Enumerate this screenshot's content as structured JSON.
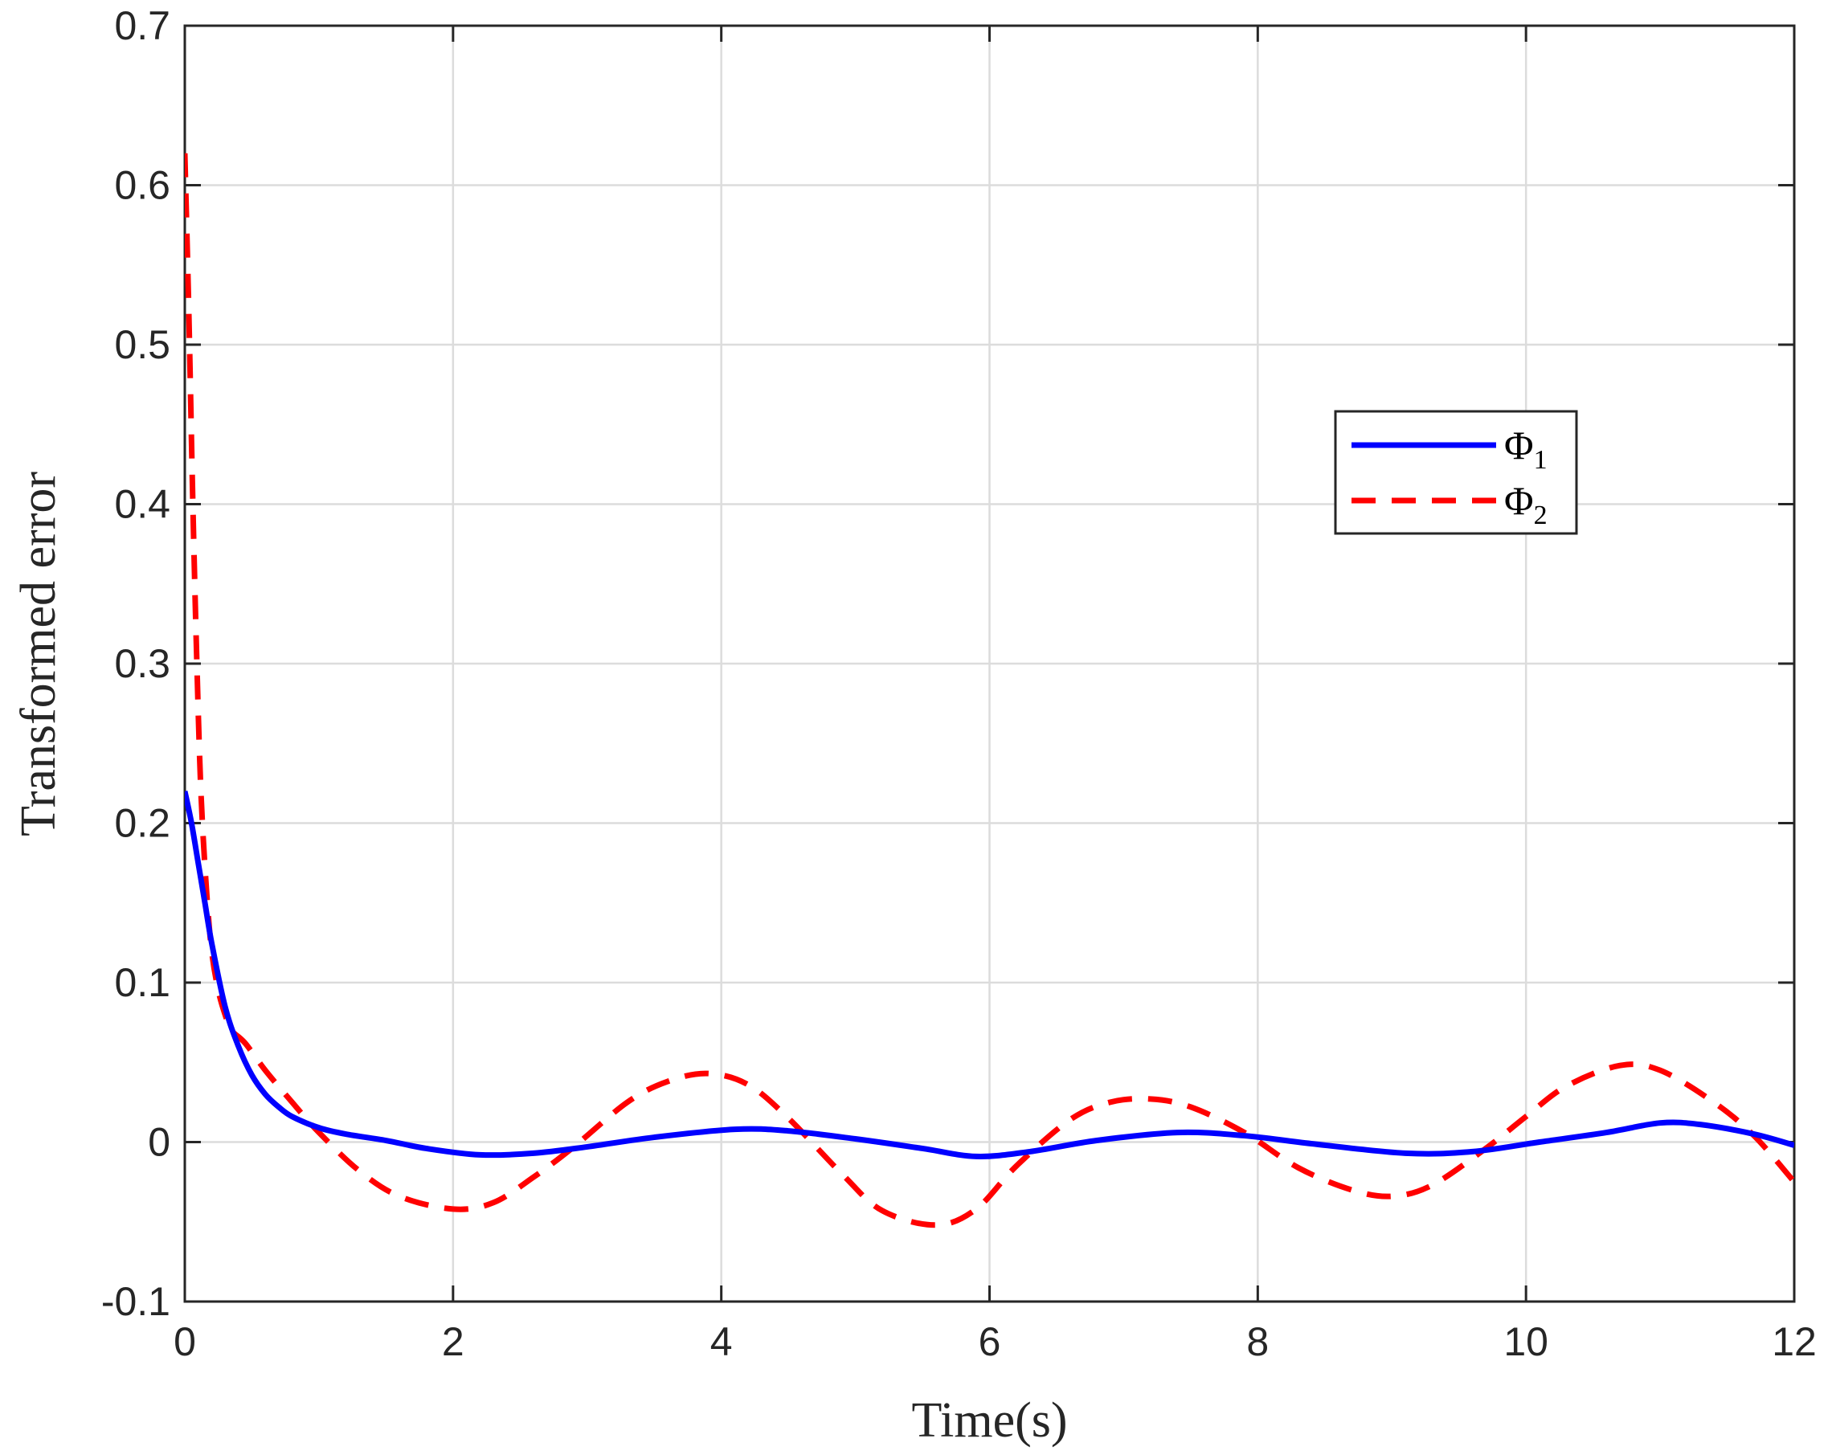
{
  "chart_data": {
    "type": "line",
    "title": "",
    "xlabel": "Time(s)",
    "ylabel": "Transformed error",
    "xlim": [
      0,
      12
    ],
    "ylim": [
      -0.1,
      0.7
    ],
    "xticks": [
      0,
      2,
      4,
      6,
      8,
      10,
      12
    ],
    "xtick_labels": [
      "0",
      "2",
      "4",
      "6",
      "8",
      "10",
      "12"
    ],
    "yticks": [
      -0.1,
      0,
      0.1,
      0.2,
      0.3,
      0.4,
      0.5,
      0.6,
      0.7
    ],
    "ytick_labels": [
      "-0.1",
      "0",
      "0.1",
      "0.2",
      "0.3",
      "0.4",
      "0.5",
      "0.6",
      "0.7"
    ],
    "grid": true,
    "legend_position": "top-right",
    "series": [
      {
        "name": "Φ",
        "subscript": "1",
        "color": "#0000ff",
        "dash": "solid",
        "x": [
          0,
          0.05,
          0.1,
          0.15,
          0.2,
          0.3,
          0.4,
          0.5,
          0.6,
          0.7,
          0.8,
          1.0,
          1.2,
          1.5,
          1.8,
          2.2,
          2.6,
          3.0,
          3.5,
          4.1,
          4.5,
          5.0,
          5.5,
          5.9,
          6.3,
          6.8,
          7.4,
          7.9,
          8.4,
          9.1,
          9.6,
          10.1,
          10.6,
          11.0,
          11.3,
          11.7,
          12.0
        ],
        "y": [
          0.22,
          0.2,
          0.175,
          0.15,
          0.125,
          0.085,
          0.06,
          0.042,
          0.03,
          0.022,
          0.016,
          0.009,
          0.005,
          0.001,
          -0.004,
          -0.008,
          -0.007,
          -0.003,
          0.003,
          0.008,
          0.007,
          0.002,
          -0.004,
          -0.009,
          -0.006,
          0.001,
          0.006,
          0.004,
          -0.001,
          -0.007,
          -0.006,
          0.0,
          0.006,
          0.012,
          0.011,
          0.005,
          -0.002
        ]
      },
      {
        "name": "Φ",
        "subscript": "2",
        "color": "#ff0000",
        "dash": "dashed",
        "x": [
          0,
          0.03,
          0.06,
          0.09,
          0.12,
          0.16,
          0.2,
          0.25,
          0.3,
          0.35,
          0.45,
          0.6,
          0.8,
          1.0,
          1.3,
          1.6,
          2.0,
          2.3,
          2.6,
          2.9,
          3.3,
          3.6,
          3.9,
          4.2,
          4.5,
          4.9,
          5.2,
          5.6,
          5.9,
          6.2,
          6.6,
          6.9,
          7.2,
          7.5,
          7.9,
          8.3,
          8.7,
          9.0,
          9.3,
          9.7,
          10.0,
          10.3,
          10.7,
          11.0,
          11.4,
          11.7,
          12.0
        ],
        "y": [
          0.62,
          0.52,
          0.4,
          0.3,
          0.22,
          0.16,
          0.12,
          0.095,
          0.08,
          0.07,
          0.062,
          0.045,
          0.025,
          0.006,
          -0.018,
          -0.034,
          -0.042,
          -0.038,
          -0.022,
          -0.003,
          0.025,
          0.038,
          0.043,
          0.036,
          0.015,
          -0.02,
          -0.043,
          -0.052,
          -0.042,
          -0.015,
          0.014,
          0.025,
          0.027,
          0.022,
          0.006,
          -0.016,
          -0.03,
          -0.034,
          -0.027,
          -0.004,
          0.016,
          0.035,
          0.048,
          0.045,
          0.025,
          0.004,
          -0.025
        ]
      }
    ]
  }
}
